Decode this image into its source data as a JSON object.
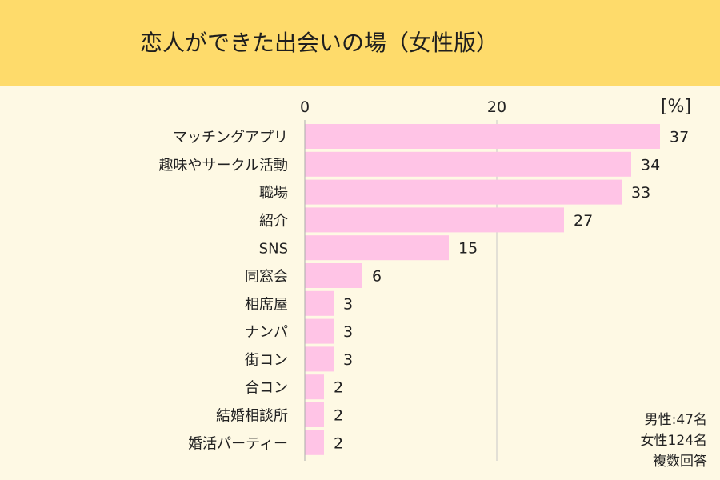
{
  "chart_data": {
    "type": "bar",
    "orientation": "horizontal",
    "title": "恋人ができた出会いの場（女性版）",
    "unit_label": "[%]",
    "x_ticks": [
      "0",
      "20"
    ],
    "xlim": [
      0,
      40
    ],
    "categories": [
      "マッチングアプリ",
      "趣味やサークル活動",
      "職場",
      "紹介",
      "SNS",
      "同窓会",
      "相席屋",
      "ナンパ",
      "街コン",
      "合コン",
      "結婚相談所",
      "婚活パーティー"
    ],
    "values": [
      37,
      34,
      33,
      27,
      15,
      6,
      3,
      3,
      3,
      2,
      2,
      2
    ],
    "bar_color": "#ffc4e6",
    "header_color": "#fedb6b",
    "background_color": "#fef9e4",
    "notes": [
      "男性:47名",
      "女性124名",
      "複数回答"
    ]
  }
}
